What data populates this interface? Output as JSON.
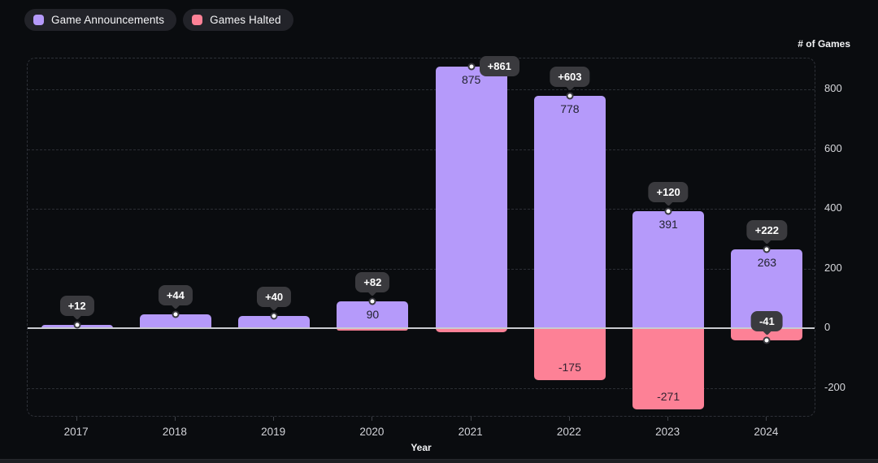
{
  "legend": {
    "items": [
      {
        "label": "Game Announcements",
        "color": "#b59afa"
      },
      {
        "label": "Games Halted",
        "color": "#fd8196"
      }
    ]
  },
  "chart_data": {
    "type": "bar",
    "title": "",
    "xlabel": "Year",
    "ylabel": "# of Games",
    "categories": [
      "2017",
      "2018",
      "2019",
      "2020",
      "2021",
      "2022",
      "2023",
      "2024"
    ],
    "series": [
      {
        "name": "Game Announcements",
        "color": "#b59afa",
        "values": [
          12,
          45,
          41,
          90,
          875,
          778,
          391,
          263
        ]
      },
      {
        "name": "Games Halted",
        "color": "#fd8196",
        "values": [
          0,
          -1,
          -1,
          -8,
          -14,
          -175,
          -271,
          -41
        ]
      }
    ],
    "bar_value_labels": {
      "announcements": [
        "",
        "",
        "",
        "90",
        "875",
        "778",
        "391",
        "263"
      ],
      "halted": [
        "",
        "",
        "",
        "",
        "",
        "-175",
        "-271",
        ""
      ]
    },
    "net_change_badges": [
      "+12",
      "+44",
      "+40",
      "+82",
      "+861",
      "+603",
      "+120",
      "+222"
    ],
    "halted_badges": [
      "",
      "",
      "",
      "",
      "",
      "",
      "",
      "-41"
    ],
    "y_ticks": [
      800,
      600,
      400,
      200,
      0,
      -200
    ],
    "ylim": [
      -280,
      910
    ],
    "grid": "dashed-horizontal",
    "legend_position": "top-left",
    "zero_line": true
  }
}
